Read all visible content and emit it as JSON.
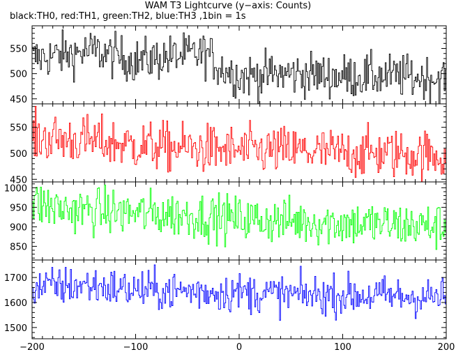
{
  "chart_data": {
    "type": "line",
    "title": "WAM T3 Lightcurve (y−axis: Counts)",
    "subtitle": "black:TH0, red:TH1, green:TH2, blue:TH3 ,1bin = 1s",
    "xlim": [
      -200,
      200
    ],
    "x_ticks": [
      -200,
      -100,
      0,
      100,
      200
    ],
    "x_tick_labels": [
      "−200",
      "−100",
      "0",
      "100",
      "200"
    ],
    "grid": false,
    "series": [
      {
        "name": "TH0",
        "color": "#000000",
        "ylim": [
          440,
          595
        ],
        "y_ticks": [
          450,
          500,
          550
        ],
        "segments": [
          [
            -200,
            530
          ],
          [
            -160,
            540
          ],
          [
            -140,
            545
          ],
          [
            -100,
            525
          ],
          [
            -60,
            535
          ],
          [
            -30,
            540
          ],
          [
            -20,
            515
          ],
          [
            0,
            495
          ],
          [
            50,
            500
          ],
          [
            100,
            495
          ],
          [
            150,
            495
          ],
          [
            200,
            490
          ]
        ],
        "noise": 22
      },
      {
        "name": "TH1",
        "color": "#ff0000",
        "ylim": [
          445,
          595
        ],
        "y_ticks": [
          450,
          500,
          550
        ],
        "segments": [
          [
            -200,
            530
          ],
          [
            -150,
            525
          ],
          [
            -100,
            515
          ],
          [
            -50,
            510
          ],
          [
            0,
            505
          ],
          [
            50,
            505
          ],
          [
            100,
            500
          ],
          [
            150,
            500
          ],
          [
            200,
            495
          ]
        ],
        "noise": 24
      },
      {
        "name": "TH2",
        "color": "#00ff00",
        "ylim": [
          815,
          1015
        ],
        "y_ticks": [
          850,
          900,
          950,
          1000
        ],
        "segments": [
          [
            -200,
            960
          ],
          [
            -170,
            945
          ],
          [
            -100,
            935
          ],
          [
            -50,
            930
          ],
          [
            0,
            920
          ],
          [
            50,
            915
          ],
          [
            100,
            910
          ],
          [
            150,
            905
          ],
          [
            200,
            900
          ]
        ],
        "noise": 30
      },
      {
        "name": "TH3",
        "color": "#0000ff",
        "ylim": [
          1455,
          1770
        ],
        "y_ticks": [
          1500,
          1600,
          1700
        ],
        "segments": [
          [
            -200,
            1660
          ],
          [
            -150,
            1670
          ],
          [
            -100,
            1650
          ],
          [
            -50,
            1645
          ],
          [
            0,
            1640
          ],
          [
            50,
            1630
          ],
          [
            100,
            1630
          ],
          [
            150,
            1625
          ],
          [
            200,
            1620
          ]
        ],
        "noise": 40
      }
    ]
  }
}
